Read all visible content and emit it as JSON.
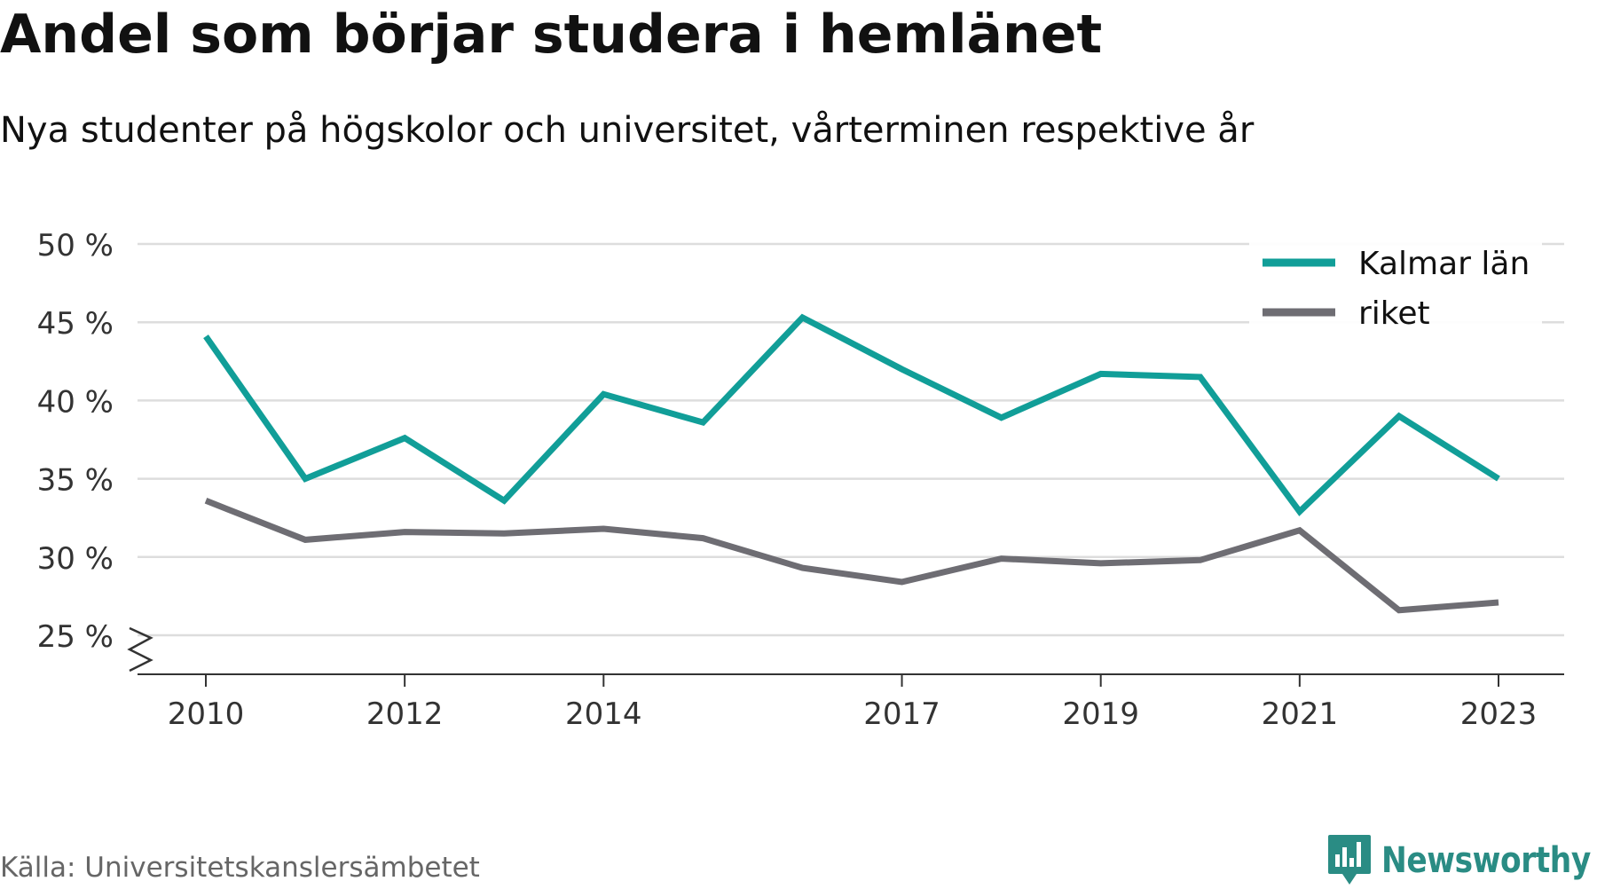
{
  "title": "Andel som börjar studera i hemlänet",
  "subtitle": "Nya studenter på högskolor och universitet, vårterminen respektive år",
  "source": "Källa: Universitetskanslersämbetet",
  "brand": {
    "name": "Newsworthy",
    "logo_icon": "bar-chart-badge-icon",
    "color": "#2a8c84"
  },
  "chart_data": {
    "type": "line",
    "x": [
      2010,
      2011,
      2012,
      2013,
      2014,
      2015,
      2016,
      2017,
      2018,
      2019,
      2020,
      2021,
      2022,
      2023
    ],
    "x_tick_labels": [
      "2010",
      "2012",
      "2014",
      "2017",
      "2019",
      "2021",
      "2023"
    ],
    "y_tick_labels": [
      "25 %",
      "30 %",
      "35 %",
      "40 %",
      "45 %",
      "50 %"
    ],
    "ylim": [
      25,
      50
    ],
    "y_break": true,
    "grid": true,
    "legend_position": "top-right",
    "series": [
      {
        "name": "Kalmar län",
        "color": "#119e98",
        "values": [
          44.1,
          35.0,
          37.6,
          33.6,
          40.4,
          38.6,
          45.3,
          42.0,
          38.9,
          41.7,
          41.5,
          32.9,
          39.0,
          35.0
        ]
      },
      {
        "name": "riket",
        "color": "#6e6d73",
        "values": [
          33.6,
          31.1,
          31.6,
          31.5,
          31.8,
          31.2,
          29.3,
          28.4,
          29.9,
          29.6,
          29.8,
          31.7,
          26.6,
          27.1
        ]
      }
    ]
  }
}
